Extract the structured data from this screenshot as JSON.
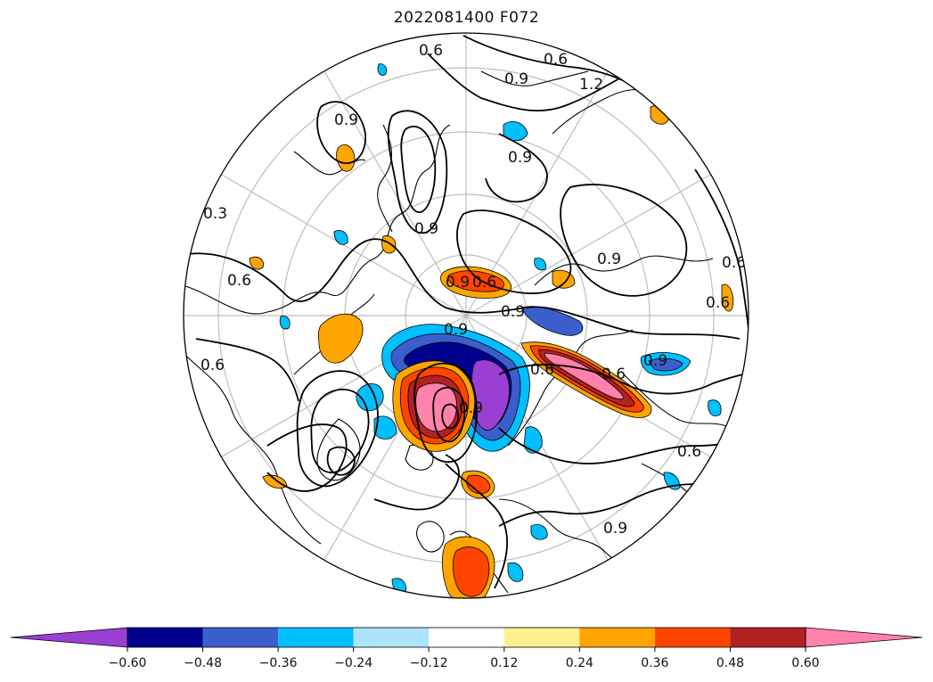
{
  "map": {
    "title": "2022081400 F072",
    "projection": "north-polar-stereographic",
    "contour_labels": [
      "0.6",
      "0.6",
      "0.9",
      "1.2",
      "0.9",
      "0.9",
      "0.9",
      "0.9",
      "0.9",
      "0.9",
      "0.6",
      "0.6",
      "0.9",
      "0.9",
      "0.6",
      "0.6",
      "0.6",
      "0.3",
      "0.6",
      "0.6",
      "0.9",
      "0.9",
      "0.6"
    ]
  },
  "colorbar": {
    "ticks": [
      "−0.60",
      "−0.48",
      "−0.36",
      "−0.24",
      "−0.12",
      "0.12",
      "0.24",
      "0.36",
      "0.48",
      "0.60"
    ],
    "colors": [
      "#9a3fd4",
      "#00008e",
      "#3a5fcd",
      "#00bfff",
      "#ade3fb",
      "#ffffff",
      "#fff08e",
      "#ffa500",
      "#ff4500",
      "#b22222",
      "#ff82ab"
    ],
    "extend": "both"
  }
}
